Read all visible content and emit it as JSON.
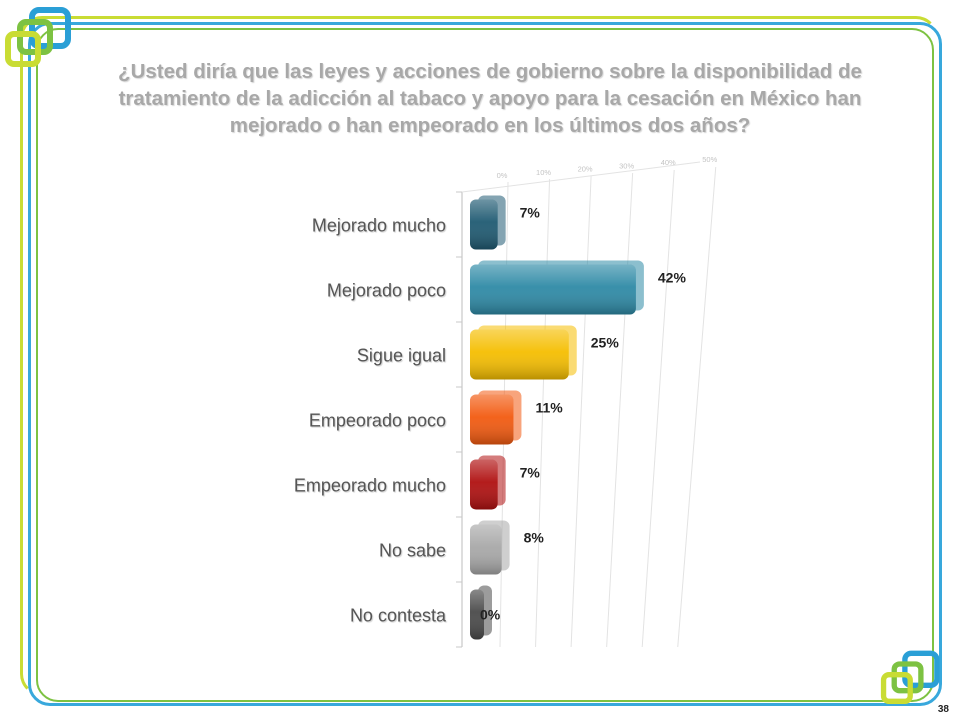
{
  "title_lines": [
    "¿Usted diría que las leyes y acciones de gobierno sobre la disponibilidad de",
    "tratamiento de la adicción al tabaco y apoyo para la cesación en México han",
    "mejorado o han empeorado en los últimos dos años?"
  ],
  "page_number": "38",
  "colors": {
    "frame_green": "#7dc242",
    "frame_blue": "#38a8dc",
    "frame_lime": "#c9dc34"
  },
  "chart_data": {
    "type": "bar",
    "orientation": "horizontal",
    "categories": [
      "Mejorado mucho",
      "Mejorado poco",
      "Sigue igual",
      "Empeorado poco",
      "Empeorado mucho",
      "No sabe",
      "No contesta"
    ],
    "values": [
      7,
      42,
      25,
      11,
      7,
      8,
      0
    ],
    "value_labels": [
      "7%",
      "42%",
      "25%",
      "11%",
      "7%",
      "8%",
      "0%"
    ],
    "bar_colors": [
      "#1f5a72",
      "#2e8aa6",
      "#f5be00",
      "#f25a10",
      "#b01010",
      "#a8a8a8",
      "#4a4a4a"
    ],
    "x_ticks": [
      "0%",
      "10%",
      "20%",
      "30%",
      "40%",
      "50%"
    ],
    "xlim": [
      0,
      50
    ],
    "grid": true,
    "legend": "none"
  }
}
